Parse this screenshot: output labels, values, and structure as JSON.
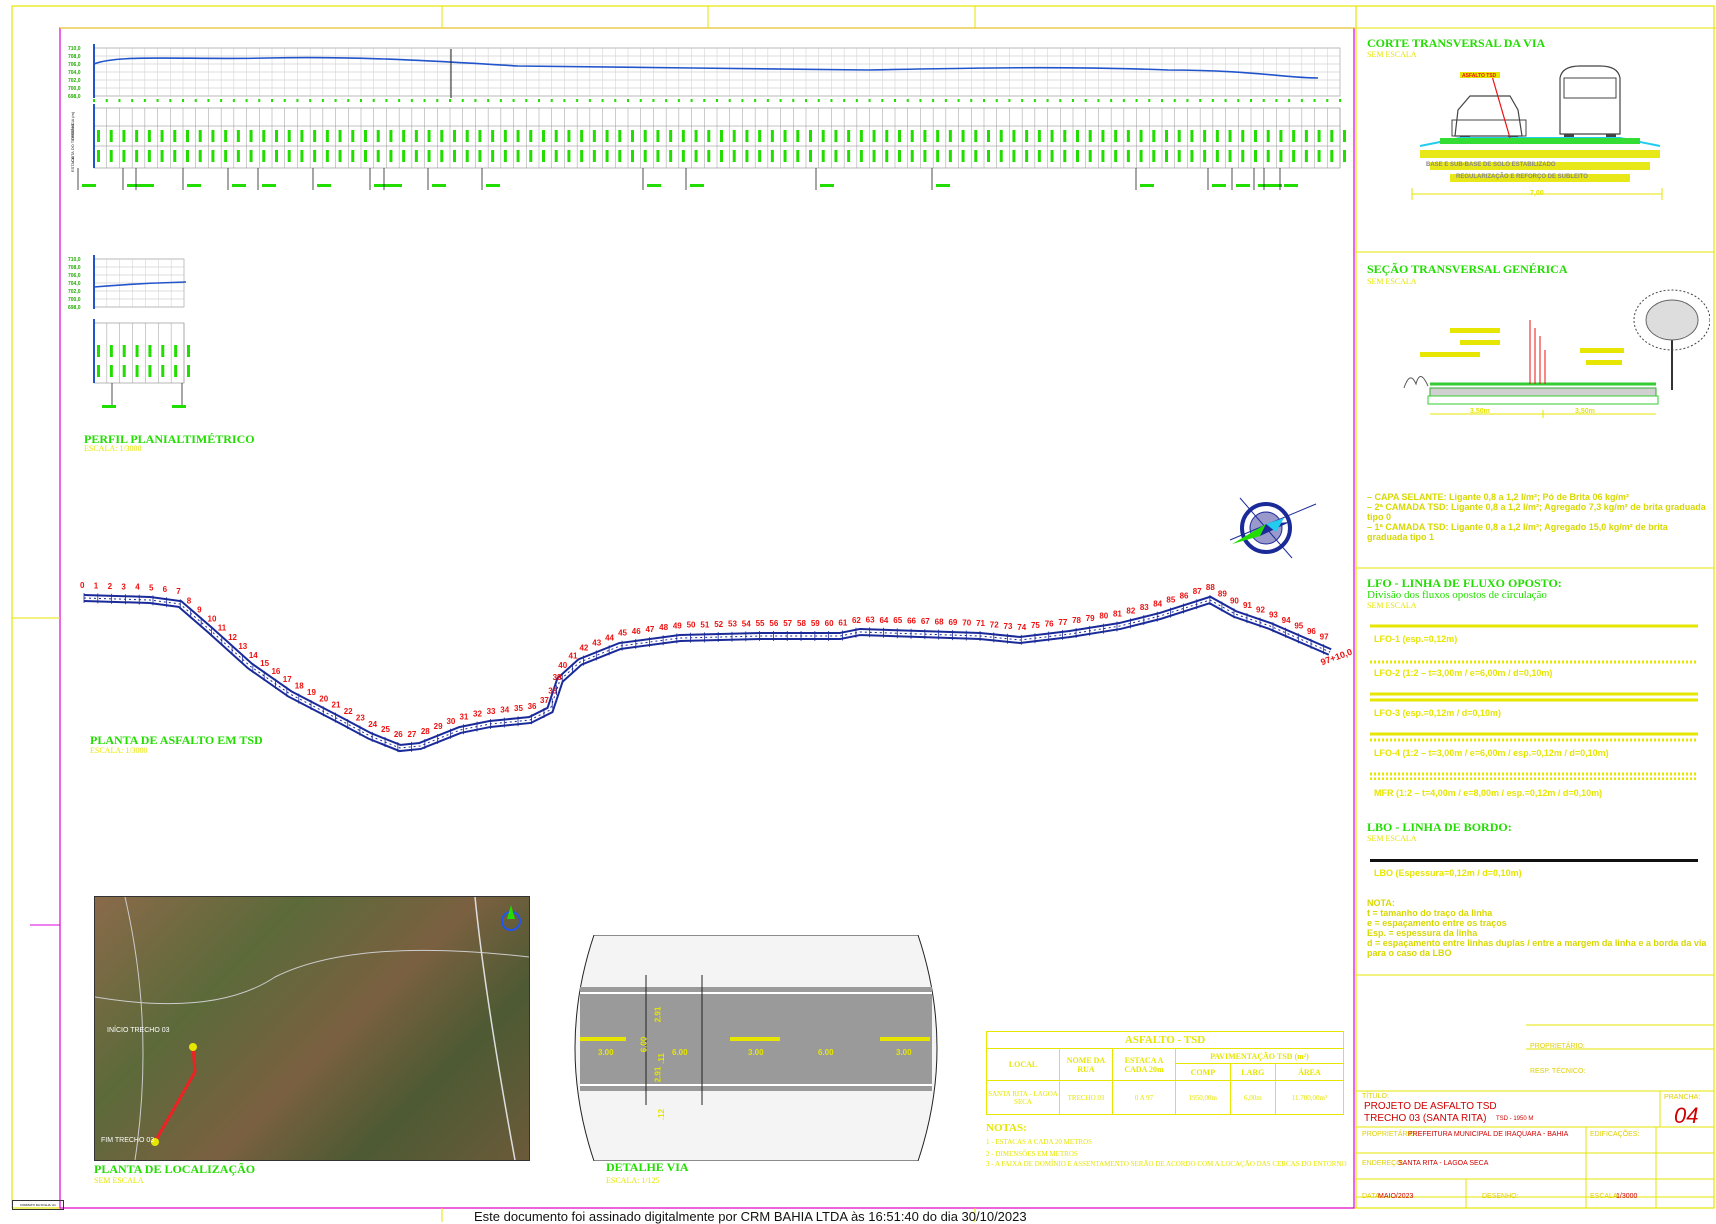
{
  "perfil": {
    "y_ticks": [
      "710,0",
      "708,0",
      "706,0",
      "704,0",
      "702,0",
      "700,0",
      "698,0"
    ],
    "row_labels": [
      "ESTACA",
      "COTA DO TERRENO",
      "DISTÂNCIA (m)"
    ],
    "title": "PERFIL PLANIALTIMÉTRICO",
    "scale": "ESCALA: 1/3000"
  },
  "corte": {
    "title": "CORTE TRANSVERSAL DA VIA",
    "scale": "SEM ESCALA",
    "lbl_asfalto": "ASFALTO TSD",
    "lbl_base": "BASE E SUB-BASE DE SOLO ESTABILIZADO",
    "lbl_reg": "REGULARIZAÇÃO E REFORÇO DE SUBLEITO",
    "lbl_dim": "7,00"
  },
  "secao": {
    "title": "SEÇÃO TRANSVERSAL GENÉRICA",
    "scale": "SEM ESCALA",
    "dim_left": "3,50m",
    "dim_right": "3,50m",
    "notes": [
      "– CAPA SELANTE: Ligante 0,8 a 1,2 l/m²; Pó de Brita 06 kg/m²",
      "– 2ª CAMADA TSD: Ligante 0,8 a 1,2 l/m²; Agregado 7,3 kg/m² de brita graduada tipo 0",
      "– 1ª CAMADA TSD: Ligante 0,8 a 1,2 l/m²; Agregado 15,0 kg/m² de brita graduada tipo 1"
    ]
  },
  "lfo": {
    "title": "LFO - LINHA DE FLUXO OPOSTO:",
    "subtitle": "Divisão dos fluxos opostos de circulação",
    "scale": "SEM ESCALA",
    "items": [
      "LFO-1  (esp.=0,12m)",
      "LFO-2  (1:2  –  t=3,00m  /  e=6,00m  /  d=0,10m)",
      "LFO-3  (esp.=0,12m  /  d=0,10m)",
      "LFO-4  (1:2  –  t=3,00m  /  e=6,00m  /  esp.=0,12m  /  d=0,10m)",
      "MFR  (1:2  –  t=4,00m  /  e=8,00m  /  esp.=0,12m  /  d=0,10m)"
    ]
  },
  "lbo": {
    "title": "LBO - LINHA DE BORDO:",
    "scale": "SEM ESCALA",
    "item": "LBO  (Espessura=0,12m  /  d=0,10m)",
    "nota_title": "NOTA:",
    "notas": [
      "t = tamanho do traço da linha",
      "e = espaçamento entre os traços",
      "Esp. = espessura da linha",
      "d = espaçamento entre linhas duplas / entre a margem da linha e a borda da via para o caso da LBO"
    ]
  },
  "planta": {
    "title": "PLANTA DE ASFALTO EM TSD",
    "scale": "ESCALA: 1/3000",
    "end_label": "97+10,0"
  },
  "localizacao": {
    "title": "PLANTA DE LOCALIZAÇÃO",
    "scale": "SEM ESCALA",
    "map_label_start": "INÍCIO TRECHO 03",
    "map_label_end": "FIM TRECHO 03"
  },
  "detalhe": {
    "title": "DETALHE VIA",
    "scale": "ESCALA: 1/125",
    "dims": [
      "3.00",
      "6.00",
      "3.00",
      "6.00",
      "3.00"
    ],
    "widths": [
      "6.00",
      "2.91",
      ".11",
      "2.91",
      ".12"
    ]
  },
  "tabela": {
    "title": "ASFALTO - TSD",
    "h_local": "LOCAL",
    "h_nome": "NOME DA RUA",
    "h_estaca": "ESTACA A CADA 20m",
    "h_pav": "PAVIMENTAÇÃO TSD (m²)",
    "h_comp": "COMP",
    "h_larg": "LARG",
    "h_area": "ÁREA",
    "row": [
      "SANTA RITA - LAGOA SECA",
      "TRECHO 03",
      "0 A 97",
      "1950,00m",
      "6,00m",
      "11.700,00m²"
    ]
  },
  "notas": {
    "title": "NOTAS:",
    "items": [
      "1 - ESTACAS A CADA 20 METROS",
      "2 - DIMENSÕES EM METROS",
      "3 - A FAIXA DE DOMÍNIO E ASSENTAMENTO SERÃO DE ACORDO COM A LOCAÇÃO DAS CERCAS DO ENTORNO"
    ]
  },
  "carimbo": {
    "proprietario_lbl": "PROPRIETÁRIO:",
    "resp_lbl": "RESP. TÉCNICO:",
    "titulo_lbl": "TÍTULO:",
    "titulo_1": "PROJETO DE ASFALTO TSD",
    "titulo_2": "TRECHO 03 (SANTA RITA)",
    "titulo_3": "TSD - 1950 M",
    "prancha_lbl": "PRANCHA:",
    "prancha": "04",
    "prop_lbl2": "PROPRIETÁRIO:",
    "prop_val": "PREFEITURA MUNICIPAL DE IRAQUARA - BAHIA",
    "edif_lbl": "EDIFICAÇÕES:",
    "end_lbl": "ENDEREÇO:",
    "end_val": "SANTA RITA - LAGOA SECA",
    "data_lbl": "DATA:",
    "data_val": "MAIO/2023",
    "desenho_lbl": "DESENHO:",
    "escala_lbl": "ESCALA:",
    "escala_val": "1/3000"
  },
  "footer": "Este documento foi assinado digitalmente por CRM BAHIA LTDA às 16:51:40 do dia 30/10/2023",
  "formato": "FORMATO DA FOLHA: A1"
}
